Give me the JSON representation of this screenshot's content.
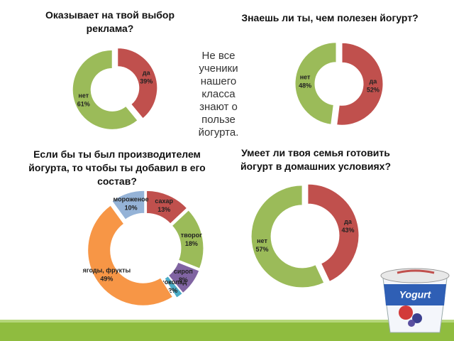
{
  "chart_data": [
    {
      "type": "pie",
      "title": "Оказывает на твой выбор реклама?",
      "categories": [
        "да",
        "нет"
      ],
      "values": [
        39,
        61
      ],
      "value_labels": [
        "39%",
        "61%"
      ],
      "colors": [
        "#c0504d",
        "#9bbb59"
      ]
    },
    {
      "type": "pie",
      "title": "Знаешь ли ты, чем полезен йогурт?",
      "categories": [
        "да",
        "нет"
      ],
      "values": [
        52,
        48
      ],
      "value_labels": [
        "52%",
        "48%"
      ],
      "colors": [
        "#c0504d",
        "#9bbb59"
      ]
    },
    {
      "type": "pie",
      "title": "Если бы ты был производителем йогурта, то чтобы ты добавил в его состав?",
      "categories": [
        "сахар",
        "творог",
        "сироп",
        "шоколад",
        "ягоды, фрукты",
        "мороженое"
      ],
      "values": [
        13,
        18,
        8,
        2,
        49,
        10
      ],
      "value_labels": [
        "13%",
        "18%",
        "8%",
        "2%",
        "49%",
        "10%"
      ],
      "colors": [
        "#c0504d",
        "#9bbb59",
        "#8064a2",
        "#4bacc6",
        "#f79646",
        "#95b3d7"
      ]
    },
    {
      "type": "pie",
      "title": "Умеет ли твоя семья готовить йогурт в домашних условиях?",
      "categories": [
        "да",
        "нет"
      ],
      "values": [
        43,
        57
      ],
      "value_labels": [
        "43%",
        "57%"
      ],
      "colors": [
        "#c0504d",
        "#9bbb59"
      ]
    }
  ],
  "note": "Не все ученики нашего класса знают о пользе йогурта.",
  "cup_label": "Yogurt"
}
